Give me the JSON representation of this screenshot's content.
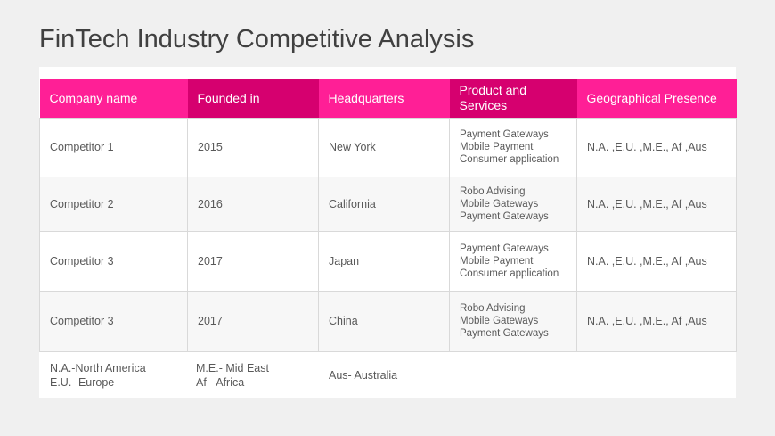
{
  "title": "FinTech Industry Competitive Analysis",
  "colors": {
    "header_primary": "#ff1f96",
    "header_secondary": "#d6006f"
  },
  "table": {
    "headers": [
      "Company name",
      "Founded in",
      "Headquarters",
      "Product and Services",
      "Geographical Presence"
    ],
    "rows": [
      [
        "Competitor 1",
        "2015",
        "New York",
        [
          "Payment Gateways",
          "Mobile Payment",
          "Consumer application"
        ],
        "N.A. ,E.U. ,M.E.,  Af ,Aus"
      ],
      [
        "Competitor 2",
        "2016",
        "California",
        [
          "Robo Advising",
          "Mobile Gateways",
          "Payment Gateways"
        ],
        "N.A. ,E.U. ,M.E.,  Af ,Aus"
      ],
      [
        "Competitor 3",
        "2017",
        "Japan",
        [
          "Payment Gateways",
          "Mobile Payment",
          "Consumer application"
        ],
        "N.A. ,E.U. ,M.E.,  Af ,Aus"
      ],
      [
        "Competitor 3",
        "2017",
        "China",
        [
          "Robo Advising",
          "Mobile Gateways",
          "Payment Gateways"
        ],
        "N.A. ,E.U. ,M.E.,  Af ,Aus"
      ]
    ]
  },
  "legend": [
    [
      "N.A.-North America",
      "E.U.- Europe"
    ],
    [
      "M.E.- Mid East",
      "Af - Africa"
    ],
    [
      "Aus- Australia"
    ]
  ]
}
